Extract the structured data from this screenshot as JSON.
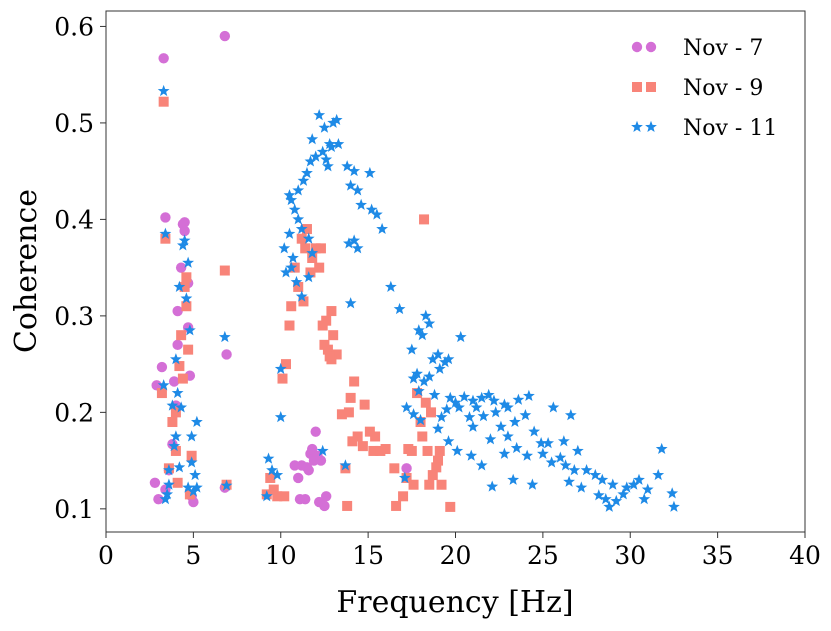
{
  "chart_data": {
    "type": "scatter",
    "title": "",
    "xlabel": "Frequency [Hz]",
    "ylabel": "Coherence",
    "xlim": [
      0,
      40
    ],
    "ylim": [
      0.076,
      0.616
    ],
    "xticks": [
      0,
      5,
      10,
      15,
      20,
      25,
      30,
      35,
      40
    ],
    "xtick_labels": [
      "0",
      "5",
      "10",
      "15",
      "20",
      "25",
      "30",
      "35",
      "40"
    ],
    "yticks": [
      0.1,
      0.2,
      0.3,
      0.4,
      0.5,
      0.6
    ],
    "ytick_labels": [
      "0.1",
      "0.2",
      "0.3",
      "0.4",
      "0.5",
      "0.6"
    ],
    "grid": false,
    "legend_position": "top-right",
    "series": [
      {
        "name": "Nov - 7",
        "marker": "circle",
        "color": "#d46fd6",
        "points": [
          [
            3.3,
            0.567
          ],
          [
            6.8,
            0.59
          ],
          [
            3.4,
            0.402
          ],
          [
            4.5,
            0.397
          ],
          [
            4.4,
            0.395
          ],
          [
            4.5,
            0.388
          ],
          [
            4.3,
            0.35
          ],
          [
            4.7,
            0.334
          ],
          [
            4.1,
            0.305
          ],
          [
            4.7,
            0.288
          ],
          [
            4.1,
            0.27
          ],
          [
            6.9,
            0.26
          ],
          [
            3.2,
            0.247
          ],
          [
            4.8,
            0.238
          ],
          [
            2.9,
            0.228
          ],
          [
            3.9,
            0.232
          ],
          [
            4.0,
            0.207
          ],
          [
            3.8,
            0.167
          ],
          [
            3.6,
            0.14
          ],
          [
            4.9,
            0.113
          ],
          [
            5.0,
            0.107
          ],
          [
            3.4,
            0.12
          ],
          [
            2.8,
            0.127
          ],
          [
            3.0,
            0.11
          ],
          [
            6.8,
            0.122
          ],
          [
            12.0,
            0.18
          ],
          [
            11.2,
            0.145
          ],
          [
            11.5,
            0.143
          ],
          [
            11.7,
            0.157
          ],
          [
            11.9,
            0.15
          ],
          [
            12.1,
            0.155
          ],
          [
            12.3,
            0.15
          ],
          [
            11.8,
            0.162
          ],
          [
            11.6,
            0.14
          ],
          [
            11.0,
            0.132
          ],
          [
            10.8,
            0.145
          ],
          [
            12.2,
            0.107
          ],
          [
            12.5,
            0.103
          ],
          [
            11.1,
            0.11
          ],
          [
            11.4,
            0.11
          ],
          [
            12.6,
            0.113
          ],
          [
            17.2,
            0.142
          ]
        ]
      },
      {
        "name": "Nov - 9",
        "marker": "square",
        "color": "#f88479",
        "points": [
          [
            3.3,
            0.522
          ],
          [
            3.4,
            0.38
          ],
          [
            6.8,
            0.347
          ],
          [
            4.6,
            0.34
          ],
          [
            4.5,
            0.33
          ],
          [
            4.6,
            0.31
          ],
          [
            4.3,
            0.28
          ],
          [
            4.7,
            0.265
          ],
          [
            4.2,
            0.248
          ],
          [
            4.4,
            0.235
          ],
          [
            3.2,
            0.22
          ],
          [
            4.0,
            0.2
          ],
          [
            3.8,
            0.19
          ],
          [
            4.0,
            0.16
          ],
          [
            4.9,
            0.155
          ],
          [
            3.6,
            0.142
          ],
          [
            4.1,
            0.127
          ],
          [
            4.8,
            0.115
          ],
          [
            6.9,
            0.125
          ],
          [
            11.5,
            0.39
          ],
          [
            11.2,
            0.38
          ],
          [
            11.4,
            0.37
          ],
          [
            12.0,
            0.37
          ],
          [
            12.3,
            0.37
          ],
          [
            11.8,
            0.36
          ],
          [
            12.2,
            0.35
          ],
          [
            11.7,
            0.345
          ],
          [
            10.8,
            0.35
          ],
          [
            11.0,
            0.33
          ],
          [
            11.3,
            0.315
          ],
          [
            10.6,
            0.31
          ],
          [
            10.5,
            0.29
          ],
          [
            12.9,
            0.305
          ],
          [
            12.6,
            0.295
          ],
          [
            12.4,
            0.29
          ],
          [
            13.0,
            0.28
          ],
          [
            12.7,
            0.265
          ],
          [
            12.5,
            0.27
          ],
          [
            13.2,
            0.26
          ],
          [
            12.9,
            0.255
          ],
          [
            10.3,
            0.25
          ],
          [
            10.1,
            0.235
          ],
          [
            14.2,
            0.232
          ],
          [
            14.0,
            0.215
          ],
          [
            13.9,
            0.2
          ],
          [
            14.8,
            0.208
          ],
          [
            13.5,
            0.198
          ],
          [
            15.4,
            0.175
          ],
          [
            14.4,
            0.175
          ],
          [
            14.1,
            0.17
          ],
          [
            14.7,
            0.165
          ],
          [
            15.1,
            0.18
          ],
          [
            15.3,
            0.16
          ],
          [
            16.0,
            0.162
          ],
          [
            15.7,
            0.16
          ],
          [
            17.3,
            0.162
          ],
          [
            16.5,
            0.142
          ],
          [
            18.3,
            0.21
          ],
          [
            18.6,
            0.2
          ],
          [
            18.0,
            0.19
          ],
          [
            17.8,
            0.22
          ],
          [
            18.1,
            0.175
          ],
          [
            18.4,
            0.16
          ],
          [
            17.5,
            0.16
          ],
          [
            19.1,
            0.16
          ],
          [
            19.0,
            0.15
          ],
          [
            18.9,
            0.143
          ],
          [
            18.7,
            0.135
          ],
          [
            19.2,
            0.125
          ],
          [
            17.6,
            0.125
          ],
          [
            18.5,
            0.125
          ],
          [
            17.0,
            0.113
          ],
          [
            16.6,
            0.103
          ],
          [
            19.7,
            0.102
          ],
          [
            17.2,
            0.132
          ],
          [
            9.4,
            0.132
          ],
          [
            9.2,
            0.115
          ],
          [
            9.8,
            0.113
          ],
          [
            10.2,
            0.113
          ],
          [
            9.6,
            0.12
          ],
          [
            13.7,
            0.142
          ],
          [
            13.8,
            0.103
          ],
          [
            18.2,
            0.4
          ],
          [
            12.8,
            0.258
          ]
        ]
      },
      {
        "name": "Nov - 11",
        "marker": "star",
        "color": "#1e8ae6",
        "points": [
          [
            3.3,
            0.533
          ],
          [
            3.4,
            0.385
          ],
          [
            4.5,
            0.378
          ],
          [
            4.4,
            0.373
          ],
          [
            4.7,
            0.355
          ],
          [
            4.2,
            0.33
          ],
          [
            4.6,
            0.318
          ],
          [
            4.8,
            0.285
          ],
          [
            4.0,
            0.255
          ],
          [
            3.3,
            0.228
          ],
          [
            4.1,
            0.22
          ],
          [
            3.8,
            0.207
          ],
          [
            4.3,
            0.205
          ],
          [
            5.2,
            0.19
          ],
          [
            4.9,
            0.175
          ],
          [
            4.0,
            0.175
          ],
          [
            3.9,
            0.165
          ],
          [
            4.9,
            0.148
          ],
          [
            3.6,
            0.14
          ],
          [
            4.2,
            0.143
          ],
          [
            4.7,
            0.122
          ],
          [
            3.6,
            0.125
          ],
          [
            3.5,
            0.115
          ],
          [
            3.4,
            0.11
          ],
          [
            5.2,
            0.122
          ],
          [
            5.0,
            0.118
          ],
          [
            6.8,
            0.278
          ],
          [
            6.9,
            0.124
          ],
          [
            5.1,
            0.135
          ],
          [
            12.2,
            0.508
          ],
          [
            13.2,
            0.503
          ],
          [
            13.0,
            0.5
          ],
          [
            12.5,
            0.495
          ],
          [
            11.8,
            0.483
          ],
          [
            12.8,
            0.478
          ],
          [
            13.3,
            0.478
          ],
          [
            12.9,
            0.475
          ],
          [
            12.4,
            0.47
          ],
          [
            12.0,
            0.465
          ],
          [
            11.7,
            0.46
          ],
          [
            12.7,
            0.455
          ],
          [
            13.8,
            0.455
          ],
          [
            12.6,
            0.462
          ],
          [
            11.5,
            0.448
          ],
          [
            14.2,
            0.45
          ],
          [
            15.1,
            0.448
          ],
          [
            11.3,
            0.44
          ],
          [
            14.4,
            0.43
          ],
          [
            14.0,
            0.435
          ],
          [
            10.5,
            0.425
          ],
          [
            11.0,
            0.43
          ],
          [
            10.6,
            0.42
          ],
          [
            14.6,
            0.415
          ],
          [
            10.8,
            0.41
          ],
          [
            15.2,
            0.41
          ],
          [
            15.5,
            0.405
          ],
          [
            11.0,
            0.4
          ],
          [
            11.2,
            0.39
          ],
          [
            15.8,
            0.39
          ],
          [
            10.5,
            0.385
          ],
          [
            14.2,
            0.378
          ],
          [
            11.6,
            0.38
          ],
          [
            13.9,
            0.375
          ],
          [
            10.2,
            0.37
          ],
          [
            14.4,
            0.37
          ],
          [
            11.8,
            0.365
          ],
          [
            10.7,
            0.36
          ],
          [
            10.6,
            0.35
          ],
          [
            10.3,
            0.345
          ],
          [
            10.9,
            0.335
          ],
          [
            11.2,
            0.32
          ],
          [
            14.0,
            0.313
          ],
          [
            16.3,
            0.33
          ],
          [
            16.8,
            0.307
          ],
          [
            18.3,
            0.3
          ],
          [
            18.5,
            0.292
          ],
          [
            17.9,
            0.285
          ],
          [
            18.1,
            0.28
          ],
          [
            20.3,
            0.278
          ],
          [
            17.5,
            0.265
          ],
          [
            19.0,
            0.26
          ],
          [
            18.7,
            0.255
          ],
          [
            19.6,
            0.255
          ],
          [
            19.4,
            0.252
          ],
          [
            17.8,
            0.24
          ],
          [
            18.2,
            0.232
          ],
          [
            17.6,
            0.235
          ],
          [
            19.1,
            0.245
          ],
          [
            18.5,
            0.237
          ],
          [
            17.9,
            0.222
          ],
          [
            18.8,
            0.218
          ],
          [
            21.5,
            0.215
          ],
          [
            21.0,
            0.212
          ],
          [
            20.5,
            0.216
          ],
          [
            21.9,
            0.218
          ],
          [
            22.8,
            0.208
          ],
          [
            22.2,
            0.212
          ],
          [
            23.0,
            0.205
          ],
          [
            23.6,
            0.213
          ],
          [
            24.2,
            0.217
          ],
          [
            19.7,
            0.215
          ],
          [
            20.0,
            0.21
          ],
          [
            20.2,
            0.205
          ],
          [
            22.3,
            0.2
          ],
          [
            21.2,
            0.205
          ],
          [
            20.8,
            0.195
          ],
          [
            19.5,
            0.203
          ],
          [
            21.6,
            0.196
          ],
          [
            24.0,
            0.197
          ],
          [
            23.4,
            0.19
          ],
          [
            25.6,
            0.205
          ],
          [
            26.6,
            0.197
          ],
          [
            17.2,
            0.205
          ],
          [
            17.6,
            0.198
          ],
          [
            18.0,
            0.192
          ],
          [
            19.0,
            0.183
          ],
          [
            21.0,
            0.185
          ],
          [
            22.6,
            0.185
          ],
          [
            24.5,
            0.18
          ],
          [
            23.0,
            0.175
          ],
          [
            22.0,
            0.172
          ],
          [
            24.9,
            0.168
          ],
          [
            25.3,
            0.168
          ],
          [
            26.2,
            0.17
          ],
          [
            27.0,
            0.16
          ],
          [
            23.5,
            0.163
          ],
          [
            22.8,
            0.157
          ],
          [
            24.1,
            0.155
          ],
          [
            25.0,
            0.157
          ],
          [
            26.0,
            0.153
          ],
          [
            25.5,
            0.148
          ],
          [
            26.3,
            0.145
          ],
          [
            26.8,
            0.14
          ],
          [
            27.5,
            0.14
          ],
          [
            28.0,
            0.135
          ],
          [
            28.4,
            0.13
          ],
          [
            29.0,
            0.125
          ],
          [
            29.8,
            0.122
          ],
          [
            30.5,
            0.13
          ],
          [
            30.2,
            0.125
          ],
          [
            31.0,
            0.12
          ],
          [
            31.8,
            0.162
          ],
          [
            31.6,
            0.135
          ],
          [
            32.4,
            0.116
          ],
          [
            32.5,
            0.102
          ],
          [
            22.1,
            0.123
          ],
          [
            23.3,
            0.13
          ],
          [
            24.4,
            0.125
          ],
          [
            26.5,
            0.128
          ],
          [
            27.2,
            0.122
          ],
          [
            28.2,
            0.114
          ],
          [
            28.6,
            0.11
          ],
          [
            29.2,
            0.108
          ],
          [
            29.6,
            0.115
          ],
          [
            30.8,
            0.11
          ],
          [
            28.8,
            0.102
          ],
          [
            21.5,
            0.145
          ],
          [
            20.9,
            0.155
          ],
          [
            20.1,
            0.16
          ],
          [
            19.2,
            0.195
          ],
          [
            19.6,
            0.17
          ],
          [
            9.3,
            0.152
          ],
          [
            9.5,
            0.14
          ],
          [
            9.2,
            0.113
          ],
          [
            9.8,
            0.135
          ],
          [
            10.0,
            0.195
          ],
          [
            10.0,
            0.245
          ],
          [
            13.7,
            0.145
          ],
          [
            17.1,
            0.132
          ],
          [
            12.4,
            0.16
          ],
          [
            11.6,
            0.34
          ]
        ]
      }
    ]
  }
}
